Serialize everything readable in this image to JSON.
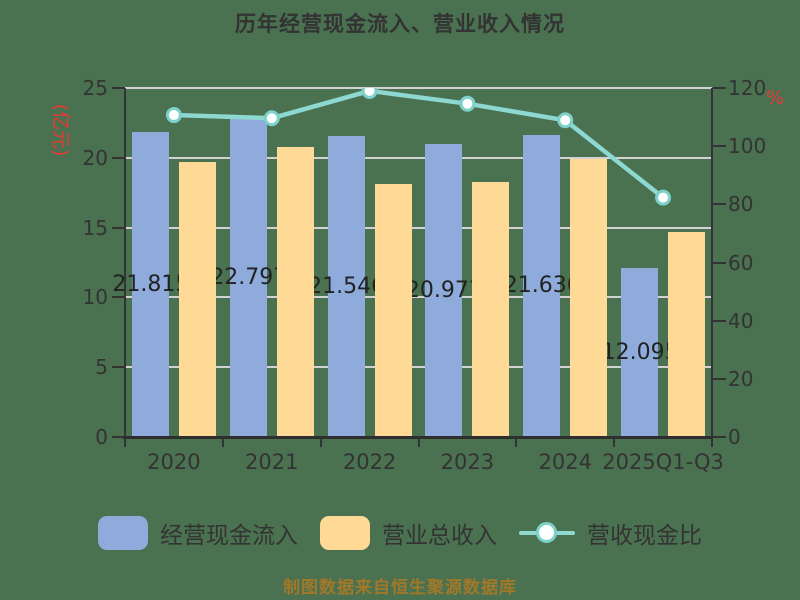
{
  "title": "历年经营现金流入、营业收入情况",
  "footer": "制图数据来自恒生聚源数据库",
  "axes": {
    "left": {
      "unit": "(亿元)",
      "ticks": [
        0,
        5,
        10,
        15,
        20,
        25
      ],
      "max": 25
    },
    "right": {
      "unit": "%",
      "ticks": [
        0,
        20,
        40,
        60,
        80,
        100,
        120
      ],
      "max": 120
    }
  },
  "legend": {
    "items": [
      {
        "label": "经营现金流入",
        "swatch": "blue-bar"
      },
      {
        "label": "营业总收入",
        "swatch": "orange-bar"
      },
      {
        "label": "营收现金比",
        "swatch": "teal-line"
      }
    ]
  },
  "colors": {
    "background": "#4a7150",
    "bar_cash_inflow": "#8fabdc",
    "bar_revenue": "#ffd996",
    "ratio_line": "#8ed8d2",
    "marker_ring": "#7ed1cb",
    "grid": "#d2d2d2",
    "axis": "#333333",
    "accent_red": "#e53935",
    "footer_text": "#a1782a"
  },
  "chart_data": {
    "type": "bar+line combo",
    "title": "历年经营现金流入、营业收入情况",
    "categories": [
      "2020",
      "2021",
      "2022",
      "2023",
      "2024",
      "2025Q1-Q3"
    ],
    "series": [
      {
        "name": "经营现金流入",
        "render": "bar",
        "axis": "left",
        "color": "#8fabdc",
        "values": [
          21.815,
          22.797,
          21.546,
          20.977,
          21.636,
          12.095
        ],
        "data_labels": [
          "21.815",
          "22.797",
          "21.546",
          "20.977",
          "21.636",
          "12.095"
        ]
      },
      {
        "name": "营业总收入",
        "render": "bar",
        "axis": "left",
        "color": "#ffd996",
        "values": [
          19.7,
          20.8,
          18.1,
          18.3,
          19.9,
          14.7
        ]
      },
      {
        "name": "营收现金比",
        "render": "line",
        "axis": "right",
        "color": "#8ed8d2",
        "values": [
          110.7,
          109.6,
          119.0,
          114.6,
          108.9,
          82.3
        ]
      }
    ],
    "left_ylabel": "(亿元)",
    "right_ylabel": "%",
    "left_ylim": [
      0,
      25
    ],
    "right_ylim": [
      0,
      120
    ],
    "grid": true,
    "legend_position": "bottom"
  }
}
